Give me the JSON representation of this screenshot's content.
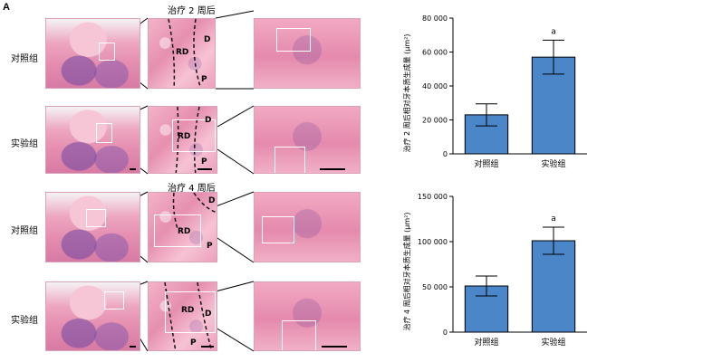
{
  "panel_letter": "A",
  "sections": [
    {
      "title": "治疗 2 周后",
      "rows": [
        "对照组",
        "实验组"
      ]
    },
    {
      "title": "治疗 4 周后",
      "rows": [
        "对照组",
        "实验组"
      ]
    }
  ],
  "tissue_labels": {
    "rd": "RD",
    "d": "D",
    "p": "P"
  },
  "charts": [
    {
      "id": "week2",
      "ylabel": "治疗 2 周后相对牙本质生成量 (μm²)",
      "yticks": [
        "0",
        "20 000",
        "40 000",
        "60 000",
        "80 000"
      ],
      "significance_mark": "a"
    },
    {
      "id": "week4",
      "ylabel": "治疗 4 周后相对牙本质生成量 (μm²)",
      "yticks": [
        "0",
        "50 000",
        "100 000",
        "150 000"
      ],
      "significance_mark": "a"
    }
  ],
  "chart_data": [
    {
      "type": "bar",
      "title": "",
      "categories": [
        "对照组",
        "实验组"
      ],
      "values": [
        23000,
        57000
      ],
      "error": [
        6500,
        10000
      ],
      "ylim": [
        0,
        80000
      ],
      "ylabel": "治疗 2 周后相对牙本质生成量 (μm²)",
      "bar_color": "#4a86c8"
    },
    {
      "type": "bar",
      "title": "",
      "categories": [
        "对照组",
        "实验组"
      ],
      "values": [
        51000,
        101000
      ],
      "error": [
        11000,
        15000
      ],
      "ylim": [
        0,
        150000
      ],
      "ylabel": "治疗 4 周后相对牙本质生成量 (μm²)",
      "bar_color": "#4a86c8"
    }
  ]
}
